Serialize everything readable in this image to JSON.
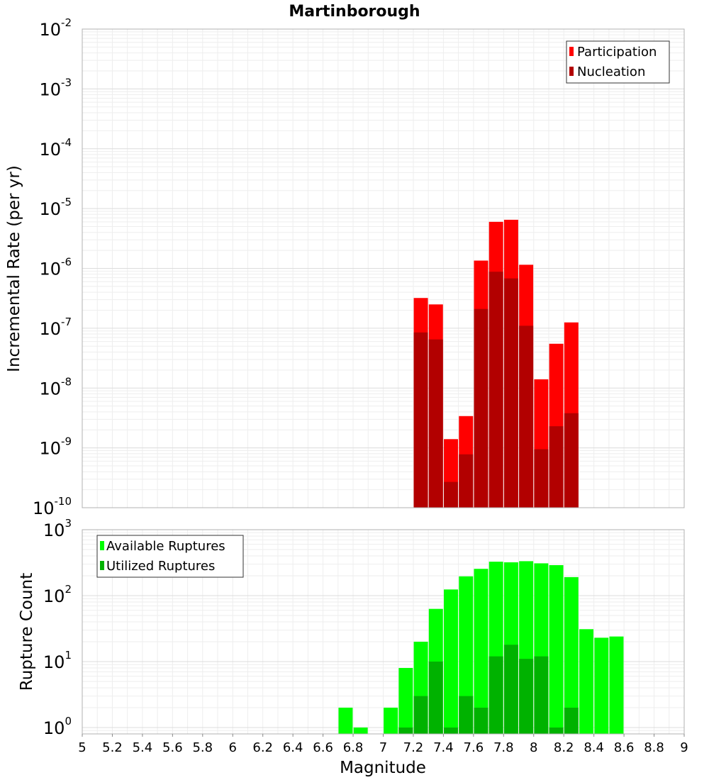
{
  "chart_data": [
    {
      "type": "bar",
      "title": "Martinborough",
      "xlabel": "Magnitude",
      "ylabel": "Incremental Rate (per yr)",
      "yscale": "log",
      "ylim": [
        1e-10,
        0.01
      ],
      "xlim": [
        5,
        9
      ],
      "grid": true,
      "legend_position": "top-right",
      "y_ticks": [
        {
          "base": "10",
          "exp": "-2"
        },
        {
          "base": "10",
          "exp": "-3"
        },
        {
          "base": "10",
          "exp": "-4"
        },
        {
          "base": "10",
          "exp": "-5"
        },
        {
          "base": "10",
          "exp": "-6"
        },
        {
          "base": "10",
          "exp": "-7"
        },
        {
          "base": "10",
          "exp": "-8"
        },
        {
          "base": "10",
          "exp": "-9"
        },
        {
          "base": "10",
          "exp": "-10"
        }
      ],
      "x": [
        7.25,
        7.35,
        7.45,
        7.55,
        7.65,
        7.75,
        7.85,
        7.95,
        8.05,
        8.15,
        8.25
      ],
      "series": [
        {
          "name": "Participation",
          "color": "#ff0000",
          "values": [
            3.2e-07,
            2.5e-07,
            1.4e-09,
            3.4e-09,
            1.35e-06,
            6e-06,
            6.5e-06,
            1.15e-06,
            1.4e-08,
            5.5e-08,
            1.25e-07
          ]
        },
        {
          "name": "Nucleation",
          "color": "#b20000",
          "values": [
            8.5e-08,
            6.5e-08,
            2.7e-10,
            7.8e-10,
            2.1e-07,
            8.8e-07,
            6.8e-07,
            1.1e-07,
            9.5e-10,
            2.3e-09,
            3.8e-09
          ]
        }
      ]
    },
    {
      "type": "bar",
      "xlabel": "Magnitude",
      "ylabel": "Rupture Count",
      "yscale": "log",
      "ylim": [
        0.8,
        1000
      ],
      "xlim": [
        5,
        9
      ],
      "grid": true,
      "legend_position": "top-left",
      "y_ticks": [
        {
          "value": 1000,
          "base": "10",
          "exp": "3"
        },
        {
          "value": 100,
          "base": "10",
          "exp": "2"
        },
        {
          "value": 10,
          "base": "10",
          "exp": "1"
        },
        {
          "value": 1,
          "base": "10",
          "exp": "0"
        }
      ],
      "x_ticks": [
        "5",
        "5.2",
        "5.4",
        "5.6",
        "5.8",
        "6",
        "6.2",
        "6.4",
        "6.6",
        "6.8",
        "7",
        "7.2",
        "7.4",
        "7.6",
        "7.8",
        "8",
        "8.2",
        "8.4",
        "8.6",
        "8.8",
        "9"
      ],
      "x": [
        6.75,
        6.85,
        6.95,
        7.05,
        7.15,
        7.25,
        7.35,
        7.45,
        7.55,
        7.65,
        7.75,
        7.85,
        7.95,
        8.05,
        8.15,
        8.25,
        8.35,
        8.45,
        8.55
      ],
      "series": [
        {
          "name": "Available Ruptures",
          "color": "#00ff00",
          "values": [
            2,
            1,
            null,
            2,
            8,
            20,
            63,
            124,
            196,
            255,
            327,
            320,
            333,
            309,
            290,
            191,
            31,
            23,
            24
          ]
        },
        {
          "name": "Utilized Ruptures",
          "color": "#00b200",
          "values": [
            null,
            null,
            null,
            null,
            1,
            3,
            10,
            1,
            3,
            2,
            12,
            18,
            11,
            12,
            1,
            2,
            null,
            null,
            null
          ]
        }
      ]
    }
  ]
}
